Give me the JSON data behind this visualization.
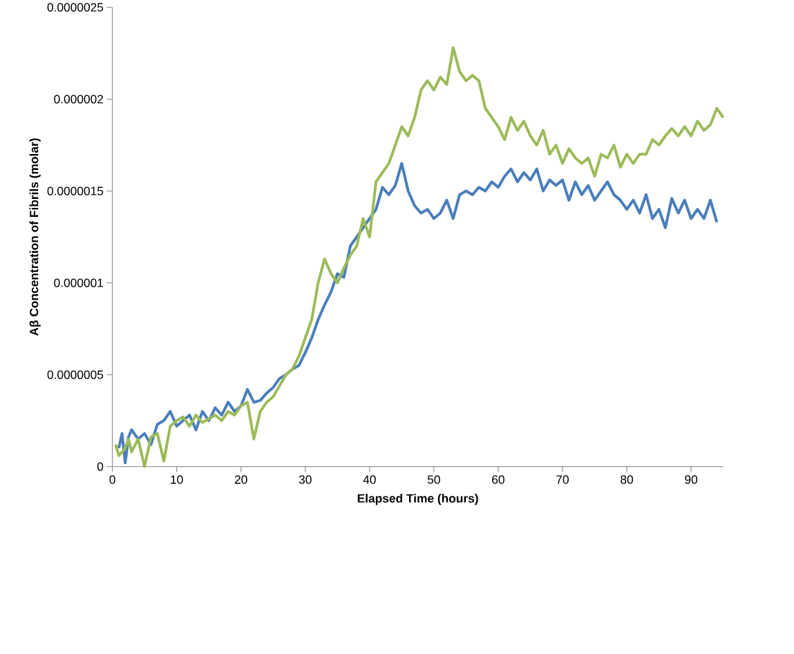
{
  "chart_data": {
    "type": "line",
    "xlabel": "Elapsed Time (hours)",
    "ylabel": "Aβ Concentration of Fibrils (molar)",
    "xlim": [
      0,
      95
    ],
    "ylim": [
      0,
      2.5e-06
    ],
    "xticks": [
      0,
      10,
      20,
      30,
      40,
      50,
      60,
      70,
      80,
      90
    ],
    "yticks": [
      {
        "value": 0,
        "label": "0"
      },
      {
        "value": 5e-07,
        "label": "0.0000005"
      },
      {
        "value": 1e-06,
        "label": "0.000001"
      },
      {
        "value": 1.5e-06,
        "label": "0.0000015"
      },
      {
        "value": 2e-06,
        "label": "0.000002"
      },
      {
        "value": 2.5e-06,
        "label": "0.0000025"
      }
    ],
    "grid": false,
    "marker": "none",
    "line_style": "solid",
    "series": [
      {
        "color": "#4a7ebb",
        "x": [
          1,
          1.5,
          2,
          2.5,
          3,
          4,
          5,
          6,
          7,
          8,
          9,
          10,
          11,
          12,
          13,
          14,
          15,
          16,
          17,
          18,
          19,
          20,
          21,
          22,
          23,
          24,
          25,
          26,
          27,
          28,
          29,
          30,
          31,
          32,
          33,
          34,
          35,
          36,
          37,
          38,
          39,
          40,
          41,
          42,
          43,
          44,
          45,
          46,
          47,
          48,
          49,
          50,
          51,
          52,
          53,
          54,
          55,
          56,
          57,
          58,
          59,
          60,
          61,
          62,
          63,
          64,
          65,
          66,
          67,
          68,
          69,
          70,
          71,
          72,
          73,
          74,
          75,
          76,
          77,
          78,
          79,
          80,
          81,
          82,
          83,
          84,
          85,
          86,
          87,
          88,
          89,
          90,
          91,
          92,
          93,
          94
        ],
        "values": [
          1e-07,
          1.8e-07,
          2e-08,
          1.6e-07,
          2e-07,
          1.5e-07,
          1.8e-07,
          1.2e-07,
          2.3e-07,
          2.5e-07,
          3e-07,
          2.2e-07,
          2.5e-07,
          2.8e-07,
          2e-07,
          3e-07,
          2.5e-07,
          3.2e-07,
          2.8e-07,
          3.5e-07,
          3e-07,
          3.3e-07,
          4.2e-07,
          3.5e-07,
          3.6e-07,
          4e-07,
          4.3e-07,
          4.8e-07,
          5e-07,
          5.3e-07,
          5.5e-07,
          6.2e-07,
          7e-07,
          8e-07,
          8.8e-07,
          9.5e-07,
          1.05e-06,
          1.03e-06,
          1.2e-06,
          1.25e-06,
          1.3e-06,
          1.35e-06,
          1.4e-06,
          1.52e-06,
          1.48e-06,
          1.53e-06,
          1.65e-06,
          1.5e-06,
          1.42e-06,
          1.38e-06,
          1.4e-06,
          1.35e-06,
          1.38e-06,
          1.45e-06,
          1.35e-06,
          1.48e-06,
          1.5e-06,
          1.48e-06,
          1.52e-06,
          1.5e-06,
          1.55e-06,
          1.52e-06,
          1.58e-06,
          1.62e-06,
          1.55e-06,
          1.6e-06,
          1.56e-06,
          1.62e-06,
          1.5e-06,
          1.56e-06,
          1.53e-06,
          1.56e-06,
          1.45e-06,
          1.55e-06,
          1.48e-06,
          1.53e-06,
          1.45e-06,
          1.5e-06,
          1.55e-06,
          1.48e-06,
          1.45e-06,
          1.4e-06,
          1.45e-06,
          1.38e-06,
          1.48e-06,
          1.35e-06,
          1.4e-06,
          1.3e-06,
          1.46e-06,
          1.38e-06,
          1.45e-06,
          1.35e-06,
          1.4e-06,
          1.35e-06,
          1.45e-06,
          1.33e-06
        ]
      },
      {
        "color": "#9bbb59",
        "x": [
          0.5,
          1,
          2,
          2.5,
          3,
          4,
          5,
          6,
          7,
          8,
          9,
          10,
          11,
          12,
          13,
          14,
          15,
          16,
          17,
          18,
          19,
          20,
          21,
          22,
          23,
          24,
          25,
          26,
          27,
          28,
          29,
          30,
          31,
          32,
          33,
          34,
          35,
          36,
          37,
          38,
          39,
          40,
          41,
          42,
          43,
          44,
          45,
          46,
          47,
          48,
          49,
          50,
          51,
          52,
          53,
          54,
          55,
          56,
          57,
          58,
          59,
          60,
          61,
          62,
          63,
          64,
          65,
          66,
          67,
          68,
          69,
          70,
          71,
          72,
          73,
          74,
          75,
          76,
          77,
          78,
          79,
          80,
          81,
          82,
          83,
          84,
          85,
          86,
          87,
          88,
          89,
          90,
          91,
          92,
          93,
          94,
          95
        ],
        "values": [
          1.2e-07,
          6e-08,
          1e-07,
          1.5e-07,
          8e-08,
          1.5e-07,
          0.0,
          1.6e-07,
          1.8e-07,
          3e-08,
          2.2e-07,
          2.5e-07,
          2.7e-07,
          2.2e-07,
          2.8e-07,
          2.4e-07,
          2.6e-07,
          2.8e-07,
          2.5e-07,
          3e-07,
          2.8e-07,
          3.3e-07,
          3.5e-07,
          1.5e-07,
          3e-07,
          3.5e-07,
          3.8e-07,
          4.4e-07,
          5e-07,
          5.3e-07,
          6e-07,
          7e-07,
          8e-07,
          1e-06,
          1.13e-06,
          1.05e-06,
          1e-06,
          1.08e-06,
          1.15e-06,
          1.2e-06,
          1.35e-06,
          1.25e-06,
          1.55e-06,
          1.6e-06,
          1.65e-06,
          1.75e-06,
          1.85e-06,
          1.8e-06,
          1.9e-06,
          2.05e-06,
          2.1e-06,
          2.05e-06,
          2.12e-06,
          2.08e-06,
          2.28e-06,
          2.15e-06,
          2.1e-06,
          2.13e-06,
          2.1e-06,
          1.95e-06,
          1.9e-06,
          1.85e-06,
          1.78e-06,
          1.9e-06,
          1.83e-06,
          1.88e-06,
          1.8e-06,
          1.75e-06,
          1.83e-06,
          1.7e-06,
          1.75e-06,
          1.65e-06,
          1.73e-06,
          1.68e-06,
          1.65e-06,
          1.68e-06,
          1.58e-06,
          1.7e-06,
          1.68e-06,
          1.75e-06,
          1.63e-06,
          1.7e-06,
          1.65e-06,
          1.7e-06,
          1.7e-06,
          1.78e-06,
          1.75e-06,
          1.8e-06,
          1.84e-06,
          1.8e-06,
          1.85e-06,
          1.8e-06,
          1.88e-06,
          1.83e-06,
          1.86e-06,
          1.95e-06,
          1.9e-06
        ]
      }
    ]
  }
}
